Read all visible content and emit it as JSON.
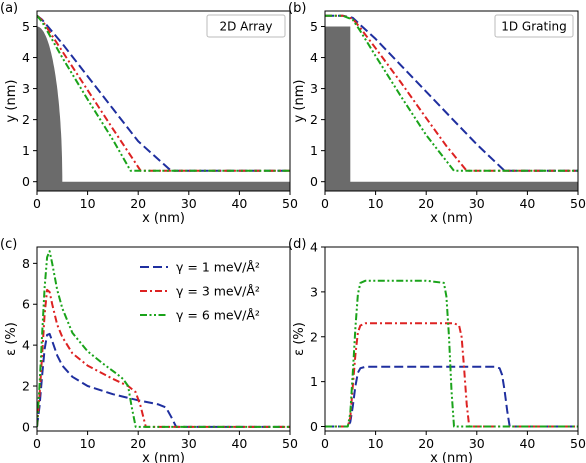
{
  "chart_data": [
    {
      "type": "line",
      "panel": "(a)",
      "title": "2D Array",
      "xlabel": "x (nm)",
      "ylabel": "y (nm)",
      "xlim": [
        0,
        50
      ],
      "ylim": [
        -0.3,
        5.5
      ],
      "xticks": [
        "0",
        "10",
        "20",
        "30",
        "40",
        "50"
      ],
      "yticks": [
        "0",
        "1",
        "2",
        "3",
        "4",
        "5"
      ],
      "substrate": {
        "type": "curved-pillar",
        "top": 5.0,
        "radius": 5.0,
        "base": 0
      },
      "series": [
        {
          "name": "γ = 1 meV/Å²",
          "color": "#1f2f9f",
          "dash": "long",
          "x": [
            0,
            1,
            5,
            10,
            15,
            20,
            26.5,
            50
          ],
          "y": [
            5.35,
            5.22,
            4.45,
            3.4,
            2.35,
            1.3,
            0.35,
            0.35
          ]
        },
        {
          "name": "γ = 3 meV/Å²",
          "color": "#dd2222",
          "dash": "dashdot",
          "x": [
            0,
            1,
            5,
            10,
            15,
            20.5,
            50
          ],
          "y": [
            5.35,
            5.2,
            4.2,
            2.95,
            1.7,
            0.35,
            0.35
          ]
        },
        {
          "name": "γ = 6 meV/Å²",
          "color": "#1aa31a",
          "dash": "dashdotdot",
          "x": [
            0,
            1,
            5,
            10,
            15,
            18.5,
            50
          ],
          "y": [
            5.35,
            5.15,
            4.0,
            2.65,
            1.35,
            0.35,
            0.35
          ]
        }
      ]
    },
    {
      "type": "line",
      "panel": "(b)",
      "title": "1D Grating",
      "xlabel": "x (nm)",
      "ylabel": "y (nm)",
      "xlim": [
        0,
        50
      ],
      "ylim": [
        -0.3,
        5.5
      ],
      "xticks": [
        "0",
        "10",
        "20",
        "30",
        "40",
        "50"
      ],
      "yticks": [
        "0",
        "1",
        "2",
        "3",
        "4",
        "5"
      ],
      "substrate": {
        "type": "rect-step",
        "top": 5.0,
        "width": 5.0,
        "base": 0
      },
      "series": [
        {
          "name": "γ = 1 meV/Å²",
          "color": "#1f2f9f",
          "dash": "long",
          "x": [
            0,
            3.5,
            5.5,
            7,
            10,
            15,
            20,
            25,
            30,
            35.5,
            50
          ],
          "y": [
            5.35,
            5.35,
            5.28,
            5.05,
            4.6,
            3.75,
            2.9,
            2.05,
            1.2,
            0.35,
            0.35
          ]
        },
        {
          "name": "γ = 3 meV/Å²",
          "color": "#dd2222",
          "dash": "dashdot",
          "x": [
            0,
            3.5,
            5.5,
            7,
            10,
            15,
            20,
            24,
            28,
            50
          ],
          "y": [
            5.35,
            5.35,
            5.25,
            4.95,
            4.3,
            3.2,
            2.05,
            1.15,
            0.35,
            0.35
          ]
        },
        {
          "name": "γ = 6 meV/Å²",
          "color": "#1aa31a",
          "dash": "dashdotdot",
          "x": [
            0,
            3.5,
            5.5,
            7,
            10,
            15,
            20,
            25.5,
            50
          ],
          "y": [
            5.35,
            5.35,
            5.22,
            4.85,
            4.05,
            2.75,
            1.5,
            0.35,
            0.35
          ]
        }
      ]
    },
    {
      "type": "line",
      "panel": "(c)",
      "xlabel": "x (nm)",
      "ylabel": "ε (%)",
      "xlim": [
        0,
        50
      ],
      "ylim": [
        -0.2,
        8.8
      ],
      "xticks": [
        "0",
        "10",
        "20",
        "30",
        "40",
        "50"
      ],
      "yticks": [
        "0",
        "2",
        "4",
        "6",
        "8"
      ],
      "legend": "upper right",
      "series": [
        {
          "name": "γ = 1 meV/Å²",
          "color": "#1f2f9f",
          "dash": "long",
          "x": [
            0,
            0.5,
            1,
            1.5,
            2,
            2.5,
            3,
            4,
            5,
            7,
            10,
            15,
            20,
            24,
            25.5,
            26.5,
            27.5,
            50
          ],
          "y": [
            0,
            1.0,
            2.5,
            3.8,
            4.5,
            4.55,
            4.2,
            3.5,
            3.0,
            2.45,
            2.0,
            1.6,
            1.3,
            1.1,
            0.95,
            0.5,
            0,
            0
          ]
        },
        {
          "name": "γ = 3 meV/Å²",
          "color": "#dd2222",
          "dash": "dashdot",
          "x": [
            0,
            0.5,
            1,
            1.5,
            2,
            2.5,
            3,
            4,
            5,
            7,
            10,
            15,
            18,
            19.5,
            20.5,
            21.5,
            50
          ],
          "y": [
            0,
            1.5,
            3.5,
            5.5,
            6.7,
            6.6,
            6.0,
            5.0,
            4.4,
            3.6,
            3.0,
            2.35,
            2.0,
            1.7,
            1.0,
            0,
            0
          ]
        },
        {
          "name": "γ = 6 meV/Å²",
          "color": "#1aa31a",
          "dash": "dashdotdot",
          "x": [
            0,
            0.5,
            1,
            1.5,
            2,
            2.5,
            3,
            4,
            5,
            7,
            10,
            13,
            16,
            17,
            18,
            18.7,
            19.5,
            50
          ],
          "y": [
            0,
            2.0,
            4.5,
            6.8,
            8.3,
            8.6,
            8.0,
            6.7,
            5.8,
            4.6,
            3.7,
            3.1,
            2.55,
            2.35,
            2.0,
            1.0,
            0,
            0
          ]
        }
      ]
    },
    {
      "type": "line",
      "panel": "(d)",
      "xlabel": "x (nm)",
      "ylabel": "ε (%)",
      "xlim": [
        0,
        50
      ],
      "ylim": [
        -0.1,
        4.0
      ],
      "xticks": [
        "0",
        "10",
        "20",
        "30",
        "40",
        "50"
      ],
      "yticks": [
        "0",
        "1",
        "2",
        "3",
        "4"
      ],
      "series": [
        {
          "name": "γ = 1 meV/Å²",
          "color": "#1f2f9f",
          "dash": "long",
          "x": [
            0,
            4.5,
            5,
            5.5,
            6,
            6.5,
            7,
            8,
            10,
            20,
            30,
            33.5,
            34.5,
            35,
            35.5,
            36,
            36.5,
            50
          ],
          "y": [
            0,
            0,
            0.1,
            0.45,
            0.9,
            1.2,
            1.3,
            1.33,
            1.33,
            1.33,
            1.33,
            1.33,
            1.3,
            1.15,
            0.8,
            0.35,
            0,
            0
          ]
        },
        {
          "name": "γ = 3 meV/Å²",
          "color": "#dd2222",
          "dash": "dashdot",
          "x": [
            0,
            4.5,
            5,
            5.5,
            6,
            6.5,
            7,
            8,
            10,
            20,
            25.5,
            26.5,
            27,
            27.5,
            28,
            28.5,
            50
          ],
          "y": [
            0,
            0,
            0.2,
            0.9,
            1.6,
            2.1,
            2.25,
            2.3,
            2.3,
            2.3,
            2.3,
            2.25,
            2.0,
            1.3,
            0.5,
            0,
            0
          ]
        },
        {
          "name": "γ = 6 meV/Å²",
          "color": "#1aa31a",
          "dash": "dashdotdot",
          "x": [
            0,
            4.5,
            5,
            5.5,
            6,
            6.5,
            7,
            8,
            10,
            20,
            23.5,
            24,
            24.5,
            25,
            25.5,
            50
          ],
          "y": [
            0,
            0,
            0.3,
            1.2,
            2.2,
            2.95,
            3.2,
            3.25,
            3.25,
            3.25,
            3.2,
            2.9,
            2.0,
            0.8,
            0,
            0
          ]
        }
      ]
    }
  ]
}
